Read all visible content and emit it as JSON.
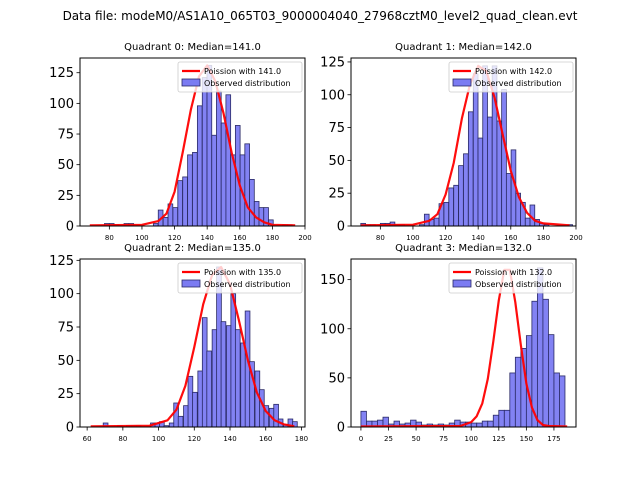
{
  "figure": {
    "suptitle": "Data file: modeM0/AS1A10_065T03_9000004040_27968cztM0_level2_quad_clean.evt"
  },
  "colors": {
    "bar_fill": "#7b7bf2",
    "bar_edge": "#2a2a66",
    "curve": "#ff0000",
    "axis": "#000000"
  },
  "chart_data": [
    {
      "type": "bar",
      "title": "Quadrant 0: Median=141.0",
      "xlabel": "",
      "ylabel": "",
      "xlim": [
        62,
        200
      ],
      "ylim": [
        0,
        137
      ],
      "xticks": [
        80,
        100,
        120,
        140,
        160,
        180,
        200
      ],
      "yticks": [
        0,
        25,
        50,
        75,
        100,
        125
      ],
      "legend": {
        "position": "top-right",
        "entries": [
          "Poission with 141.0",
          "Observed distribution"
        ]
      },
      "bin_width": 2.9,
      "bins": [
        [
          68,
          0
        ],
        [
          71,
          0
        ],
        [
          74,
          0
        ],
        [
          77,
          2
        ],
        [
          80,
          2
        ],
        [
          83,
          1
        ],
        [
          86,
          0
        ],
        [
          89,
          2
        ],
        [
          92,
          2
        ],
        [
          95,
          0
        ],
        [
          98,
          0
        ],
        [
          101,
          0
        ],
        [
          104,
          0
        ],
        [
          107,
          2
        ],
        [
          110,
          13
        ],
        [
          113,
          7
        ],
        [
          116,
          18
        ],
        [
          119,
          15
        ],
        [
          122,
          37
        ],
        [
          125,
          40
        ],
        [
          128,
          58
        ],
        [
          131,
          60
        ],
        [
          134,
          98
        ],
        [
          137,
          121
        ],
        [
          139.9,
          131
        ],
        [
          142.8,
          74
        ],
        [
          145.7,
          110
        ],
        [
          148.6,
          84
        ],
        [
          151.5,
          107
        ],
        [
          154.4,
          58
        ],
        [
          157.3,
          82
        ],
        [
          160.2,
          58
        ],
        [
          163.1,
          67
        ],
        [
          166,
          38
        ],
        [
          168.9,
          20
        ],
        [
          171.8,
          15
        ],
        [
          174.7,
          15
        ],
        [
          177.6,
          5
        ],
        [
          180.5,
          0
        ],
        [
          183.4,
          0
        ],
        [
          186.3,
          1
        ],
        [
          189.2,
          1
        ],
        [
          192.1,
          0
        ]
      ],
      "poisson": [
        [
          68,
          0.5
        ],
        [
          100,
          1
        ],
        [
          110,
          4
        ],
        [
          115,
          10
        ],
        [
          120,
          28
        ],
        [
          125,
          60
        ],
        [
          130,
          95
        ],
        [
          135,
          122
        ],
        [
          140,
          131
        ],
        [
          145,
          118
        ],
        [
          150,
          92
        ],
        [
          155,
          60
        ],
        [
          160,
          33
        ],
        [
          165,
          15
        ],
        [
          170,
          7
        ],
        [
          175,
          3
        ],
        [
          180,
          1
        ],
        [
          194,
          0.5
        ]
      ]
    },
    {
      "type": "bar",
      "title": "Quadrant 1: Median=142.0",
      "xlabel": "",
      "ylabel": "",
      "xlim": [
        62,
        200
      ],
      "ylim": [
        0,
        128
      ],
      "xticks": [
        80,
        100,
        120,
        140,
        160,
        180,
        200
      ],
      "yticks": [
        0,
        25,
        50,
        75,
        100,
        125
      ],
      "legend": {
        "position": "top-right",
        "entries": [
          "Poission with 142.0",
          "Observed distribution"
        ]
      },
      "bin_width": 2.9,
      "bins": [
        [
          68,
          2
        ],
        [
          71,
          1
        ],
        [
          74,
          1
        ],
        [
          77,
          0
        ],
        [
          80,
          2
        ],
        [
          83,
          2
        ],
        [
          86,
          3
        ],
        [
          89,
          1
        ],
        [
          92,
          1
        ],
        [
          95,
          0
        ],
        [
          98,
          0
        ],
        [
          101,
          0
        ],
        [
          104,
          1
        ],
        [
          107,
          9
        ],
        [
          110,
          5
        ],
        [
          113,
          6
        ],
        [
          116,
          17
        ],
        [
          119,
          18
        ],
        [
          122,
          29
        ],
        [
          125,
          31
        ],
        [
          128,
          46
        ],
        [
          131,
          55
        ],
        [
          134,
          87
        ],
        [
          137,
          116
        ],
        [
          139.9,
          67
        ],
        [
          142.8,
          122
        ],
        [
          145.7,
          83
        ],
        [
          148.6,
          122
        ],
        [
          151.5,
          80
        ],
        [
          154.4,
          104
        ],
        [
          157.3,
          40
        ],
        [
          160.2,
          58
        ],
        [
          163.1,
          25
        ],
        [
          166,
          18
        ],
        [
          168.9,
          6
        ],
        [
          171.8,
          16
        ],
        [
          174.7,
          5
        ],
        [
          177.6,
          2
        ],
        [
          180.5,
          1
        ],
        [
          183.4,
          0
        ],
        [
          186.3,
          0
        ],
        [
          189.2,
          0
        ],
        [
          192.1,
          0
        ],
        [
          195,
          1
        ]
      ],
      "poisson": [
        [
          68,
          0.5
        ],
        [
          100,
          1
        ],
        [
          110,
          4
        ],
        [
          115,
          9
        ],
        [
          120,
          24
        ],
        [
          125,
          48
        ],
        [
          130,
          82
        ],
        [
          135,
          108
        ],
        [
          140,
          122
        ],
        [
          145,
          118
        ],
        [
          150,
          98
        ],
        [
          155,
          70
        ],
        [
          160,
          42
        ],
        [
          165,
          22
        ],
        [
          170,
          10
        ],
        [
          175,
          4
        ],
        [
          180,
          2
        ],
        [
          196,
          0.5
        ]
      ]
    },
    {
      "type": "bar",
      "title": "Quadrant 2: Median=135.0",
      "xlabel": "",
      "ylabel": "",
      "xlim": [
        56,
        182
      ],
      "ylim": [
        0,
        126
      ],
      "xticks": [
        60,
        80,
        100,
        120,
        140,
        160,
        180
      ],
      "yticks": [
        0,
        25,
        50,
        75,
        100,
        125
      ],
      "legend": {
        "position": "top-right",
        "entries": [
          "Poission with 135.0",
          "Observed distribution"
        ]
      },
      "bin_width": 2.66,
      "bins": [
        [
          62,
          0
        ],
        [
          65,
          0
        ],
        [
          69,
          3
        ],
        [
          71.5,
          0
        ],
        [
          74,
          0
        ],
        [
          77,
          1
        ],
        [
          79.5,
          0
        ],
        [
          82,
          1
        ],
        [
          85,
          1
        ],
        [
          87.5,
          1
        ],
        [
          90,
          0
        ],
        [
          93,
          0
        ],
        [
          95.5,
          3
        ],
        [
          98,
          3
        ],
        [
          100.5,
          4
        ],
        [
          103,
          1
        ],
        [
          106,
          3
        ],
        [
          108.5,
          18
        ],
        [
          111,
          8
        ],
        [
          114,
          16
        ],
        [
          116.5,
          38
        ],
        [
          119,
          26
        ],
        [
          122,
          42
        ],
        [
          124.5,
          82
        ],
        [
          127,
          57
        ],
        [
          130,
          73
        ],
        [
          132.5,
          120
        ],
        [
          135,
          79
        ],
        [
          138,
          76
        ],
        [
          140.5,
          100
        ],
        [
          143,
          73
        ],
        [
          146,
          63
        ],
        [
          148.5,
          87
        ],
        [
          151,
          49
        ],
        [
          154,
          42
        ],
        [
          156.5,
          28
        ],
        [
          159,
          16
        ],
        [
          162,
          14
        ],
        [
          164.5,
          17
        ],
        [
          167,
          6
        ],
        [
          170,
          2
        ],
        [
          172.5,
          6
        ],
        [
          175,
          4
        ]
      ],
      "poisson": [
        [
          62,
          0.5
        ],
        [
          95,
          1
        ],
        [
          105,
          5
        ],
        [
          110,
          13
        ],
        [
          115,
          31
        ],
        [
          120,
          60
        ],
        [
          125,
          92
        ],
        [
          130,
          114
        ],
        [
          135,
          120
        ],
        [
          140,
          107
        ],
        [
          145,
          80
        ],
        [
          150,
          50
        ],
        [
          155,
          26
        ],
        [
          160,
          12
        ],
        [
          165,
          5
        ],
        [
          170,
          2
        ],
        [
          176,
          0.5
        ]
      ]
    },
    {
      "type": "bar",
      "title": "Quadrant 3: Median=132.0",
      "xlabel": "",
      "ylabel": "",
      "xlim": [
        -9,
        195
      ],
      "ylim": [
        0,
        171
      ],
      "xticks": [
        0,
        25,
        50,
        75,
        100,
        125,
        150,
        175
      ],
      "yticks": [
        0,
        50,
        100,
        150
      ],
      "legend": {
        "position": "top-right",
        "entries": [
          "Poission with 132.0",
          "Observed distribution"
        ]
      },
      "bin_width": 5,
      "bins": [
        [
          0,
          16
        ],
        [
          5,
          6
        ],
        [
          10,
          6
        ],
        [
          15,
          7
        ],
        [
          20,
          10
        ],
        [
          25,
          3
        ],
        [
          30,
          6
        ],
        [
          35,
          3
        ],
        [
          40,
          4
        ],
        [
          45,
          7
        ],
        [
          50,
          5
        ],
        [
          55,
          2
        ],
        [
          60,
          3
        ],
        [
          65,
          2
        ],
        [
          70,
          3
        ],
        [
          75,
          2
        ],
        [
          80,
          4
        ],
        [
          85,
          7
        ],
        [
          90,
          5
        ],
        [
          95,
          5
        ],
        [
          100,
          4
        ],
        [
          105,
          4
        ],
        [
          110,
          6
        ],
        [
          115,
          6
        ],
        [
          120,
          12
        ],
        [
          125,
          17
        ],
        [
          130,
          17
        ],
        [
          135,
          55
        ],
        [
          140,
          71
        ],
        [
          145,
          80
        ],
        [
          150,
          93
        ],
        [
          155,
          128
        ],
        [
          160,
          162
        ],
        [
          165,
          130
        ],
        [
          170,
          94
        ],
        [
          175,
          55
        ],
        [
          180,
          52
        ]
      ],
      "poisson": [
        [
          0,
          0.5
        ],
        [
          90,
          1
        ],
        [
          100,
          5
        ],
        [
          105,
          11
        ],
        [
          110,
          24
        ],
        [
          115,
          49
        ],
        [
          120,
          87
        ],
        [
          125,
          129
        ],
        [
          130,
          160
        ],
        [
          135,
          160
        ],
        [
          140,
          127
        ],
        [
          145,
          83
        ],
        [
          150,
          44
        ],
        [
          155,
          20
        ],
        [
          160,
          7
        ],
        [
          165,
          2
        ],
        [
          170,
          1
        ],
        [
          187,
          0.5
        ]
      ]
    }
  ]
}
